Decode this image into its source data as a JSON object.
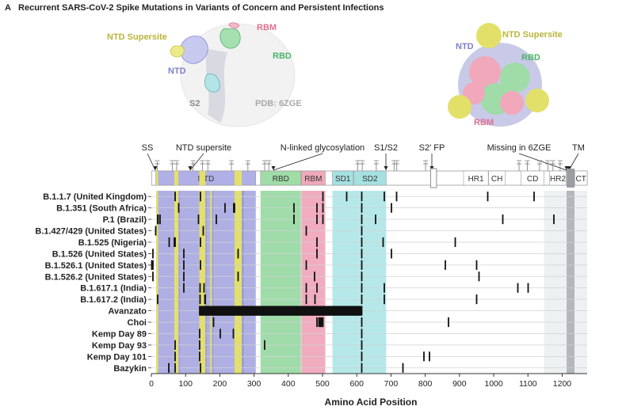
{
  "figure": {
    "panel_letter": "A",
    "title": "Recurrent SARS-CoV-2 Spike Mutations in Variants of Concern and Persistent Infections"
  },
  "structure": {
    "side_labels": {
      "ntd_supersite": "NTD Supersite",
      "rbm": "RBM",
      "rbd": "RBD",
      "ntd": "NTD",
      "s2": "S2",
      "pdb": "PDB: 6ZGE"
    },
    "top_labels": {
      "ntd": "NTD",
      "ntd_supersite": "NTD Supersite",
      "rbd": "RBD",
      "rbm": "RBM"
    },
    "colors": {
      "ntd": "#a6a6e0",
      "ntd_supersite": "#e3e06a",
      "rbd": "#8fd69a",
      "rbm": "#ee9eb4",
      "s2": "#9ea0a4"
    }
  },
  "domain_map": {
    "annotations": [
      "SS",
      "NTD supersite",
      "N-linked glycosylation",
      "S1/S2",
      "S2′ FP",
      "Missing in 6ZGE",
      "TM"
    ],
    "segments": [
      {
        "label": "",
        "start": 1,
        "end": 13,
        "color": "#ffffff"
      },
      {
        "label": "NTD",
        "start": 14,
        "end": 305,
        "color": "#b0b0e6"
      },
      {
        "label": "RBD",
        "start": 319,
        "end": 437,
        "color": "#9fdca8"
      },
      {
        "label": "RBM",
        "start": 438,
        "end": 508,
        "color": "#f0a8ba"
      },
      {
        "label": "SD1",
        "start": 529,
        "end": 590,
        "color": "#a6e0e0"
      },
      {
        "label": "SD2",
        "start": 591,
        "end": 686,
        "color": "#a6e0e0"
      },
      {
        "label": "HR1",
        "start": 912,
        "end": 984,
        "color": "#ffffff"
      },
      {
        "label": "CH",
        "start": 985,
        "end": 1034,
        "color": "#ffffff"
      },
      {
        "label": "CD",
        "start": 1080,
        "end": 1147,
        "color": "#ffffff"
      },
      {
        "label": "HR2",
        "start": 1163,
        "end": 1212,
        "color": "#ffffff"
      },
      {
        "label": "CT",
        "start": 1237,
        "end": 1273,
        "color": "#ffffff"
      }
    ],
    "fp_box": {
      "start": 816,
      "end": 833
    },
    "tm_box": {
      "start": 1213,
      "end": 1236
    },
    "glycans": [
      17,
      61,
      74,
      122,
      149,
      165,
      234,
      282,
      331,
      343,
      603,
      616,
      657,
      709,
      717,
      801,
      1074,
      1098,
      1134,
      1158,
      1173,
      1194
    ]
  },
  "chart_data": {
    "type": "scatter",
    "xlabel": "Amino Acid Position",
    "xlim": [
      0,
      1273
    ],
    "xticks": [
      0,
      100,
      200,
      300,
      400,
      500,
      600,
      700,
      800,
      900,
      1000,
      1100,
      1200
    ],
    "rows": [
      {
        "name": "B.1.1.7 (United Kingdom)",
        "positions": [
          69,
          70,
          144,
          501,
          570,
          614,
          681,
          716,
          982,
          1118
        ]
      },
      {
        "name": "B.1.351 (South Africa)",
        "positions": [
          80,
          215,
          241,
          242,
          243,
          417,
          484,
          501,
          614,
          701
        ]
      },
      {
        "name": "P.1 (Brazil)",
        "positions": [
          18,
          20,
          26,
          138,
          190,
          417,
          484,
          501,
          614,
          655,
          1027,
          1176
        ]
      },
      {
        "name": "B.1.427/429 (United States)",
        "positions": [
          13,
          152,
          452,
          614
        ]
      },
      {
        "name": "B.1.525 (Nigeria)",
        "positions": [
          52,
          67,
          69,
          70,
          144,
          484,
          614,
          677,
          888
        ]
      },
      {
        "name": "B.1.526 (United States)",
        "positions": [
          5,
          95,
          253,
          484,
          614,
          701
        ]
      },
      {
        "name": "B.1.526.1 (United States)",
        "positions": [
          1,
          5,
          95,
          144,
          452,
          614,
          859,
          950
        ]
      },
      {
        "name": "B.1.526.2 (United States)",
        "positions": [
          5,
          95,
          253,
          477,
          614,
          957
        ]
      },
      {
        "name": "B.1.617.1 (India)",
        "positions": [
          95,
          142,
          154,
          452,
          484,
          614,
          681,
          1071,
          1101
        ]
      },
      {
        "name": "B.1.617.2 (India)",
        "positions": [
          19,
          142,
          156,
          157,
          452,
          478,
          614,
          681,
          950
        ]
      },
      {
        "name": "Avanzato",
        "positions": [
          141,
          142,
          143,
          144,
          145,
          146,
          147,
          148,
          149,
          150,
          151,
          152,
          153,
          154,
          155,
          156,
          157,
          158,
          159,
          160,
          161,
          162,
          163,
          164,
          165,
          166,
          167,
          168,
          169,
          170,
          171,
          172,
          173,
          174,
          175,
          176,
          177,
          178,
          179,
          180,
          181,
          182,
          183,
          184,
          185,
          186,
          187,
          188,
          189,
          190,
          191,
          192,
          193,
          194,
          195,
          196,
          197,
          198,
          199,
          200,
          201,
          202,
          203,
          204,
          205,
          206,
          207,
          208,
          209,
          210,
          211,
          212,
          213,
          214,
          215,
          216,
          217,
          218,
          219,
          220,
          221,
          222,
          223,
          224,
          225,
          226,
          227,
          228,
          229,
          230,
          231,
          232,
          233,
          234,
          235,
          236,
          237,
          238,
          239,
          240,
          241,
          242,
          243,
          244,
          245,
          246,
          247,
          248,
          249,
          250,
          251,
          252,
          253,
          254,
          255,
          256,
          257,
          258,
          259,
          260,
          261,
          262,
          263,
          264,
          265,
          266,
          267,
          268,
          269,
          270,
          271,
          272,
          273,
          274,
          275,
          276,
          277,
          278,
          279,
          280,
          281,
          282,
          283,
          284,
          285,
          286,
          287,
          288,
          289,
          290,
          291,
          292,
          293,
          294,
          295,
          296,
          297,
          298,
          299,
          300,
          301,
          302,
          303,
          304,
          305,
          306,
          307,
          308,
          309,
          310,
          311,
          312,
          313,
          314,
          315,
          316,
          317,
          318,
          319,
          320,
          321,
          322,
          323,
          324,
          325,
          326,
          327,
          328,
          329,
          330,
          331,
          332,
          333,
          334,
          335,
          336,
          337,
          338,
          339,
          340,
          341,
          342,
          343,
          344,
          345,
          346,
          347,
          348,
          349,
          350,
          351,
          352,
          353,
          354,
          355,
          356,
          357,
          358,
          359,
          360,
          361,
          362,
          363,
          364,
          365,
          366,
          367,
          368,
          369,
          370,
          371,
          372,
          373,
          374,
          375,
          376,
          377,
          378,
          379,
          380,
          381,
          382,
          383,
          384,
          385,
          386,
          387,
          388,
          389,
          390,
          391,
          392,
          393,
          394,
          395,
          396,
          397,
          398,
          399,
          400,
          401,
          402,
          403,
          404,
          405,
          406,
          407,
          408,
          409,
          410,
          411,
          412,
          413,
          414,
          415,
          416,
          417,
          418,
          419,
          420,
          421,
          422,
          423,
          424,
          425,
          426,
          427,
          428,
          429,
          430,
          431,
          432,
          433,
          434,
          435,
          436,
          437,
          438,
          439,
          440,
          441,
          442,
          443,
          444,
          445,
          446,
          447,
          448,
          449,
          450,
          451,
          452,
          453,
          454,
          455,
          456,
          457,
          458,
          459,
          460,
          461,
          462,
          463,
          464,
          465,
          466,
          467,
          468,
          469,
          470,
          471,
          472,
          473,
          474,
          475,
          476,
          477,
          478,
          479,
          480,
          481,
          482,
          483,
          484,
          485,
          486,
          487,
          488,
          489,
          490,
          491,
          492,
          493,
          494,
          495,
          496,
          497,
          498,
          499,
          500,
          501,
          502,
          503,
          504,
          505,
          506,
          507,
          508,
          509,
          510,
          511,
          512,
          513,
          514,
          515,
          516,
          517,
          518,
          519,
          520,
          521,
          522,
          523,
          524,
          525,
          526,
          527,
          528,
          529,
          530,
          531,
          532,
          533,
          534,
          535,
          536,
          537,
          538,
          539,
          540,
          541,
          542,
          543,
          544,
          545,
          546,
          547,
          548,
          549,
          550,
          551,
          552,
          553,
          554,
          555,
          556,
          557,
          558,
          559,
          560,
          561,
          562,
          563,
          564,
          565,
          566,
          567,
          568,
          569,
          570,
          571,
          572,
          573,
          574,
          575,
          576,
          577,
          578,
          579,
          580,
          581,
          582,
          583,
          584,
          585,
          586,
          587,
          588,
          589,
          590,
          591,
          592,
          593,
          594,
          595,
          596,
          597,
          598,
          599,
          600,
          601,
          602,
          603,
          604,
          605,
          606,
          607,
          608,
          609,
          610,
          611,
          612,
          613,
          614
        ]
      },
      {
        "name": "Choi",
        "positions": [
          182,
          484,
          490,
          493,
          494,
          497,
          500,
          501,
          614,
          868
        ]
      },
      {
        "name": "Kemp Day 89",
        "positions": [
          141,
          201,
          240,
          614
        ]
      },
      {
        "name": "Kemp Day 93",
        "positions": [
          69,
          70,
          141,
          331,
          614
        ]
      },
      {
        "name": "Kemp Day 101",
        "positions": [
          69,
          70,
          141,
          614,
          796,
          812
        ]
      },
      {
        "name": "Bazykin",
        "positions": [
          51,
          70,
          144,
          614,
          735
        ]
      }
    ]
  }
}
